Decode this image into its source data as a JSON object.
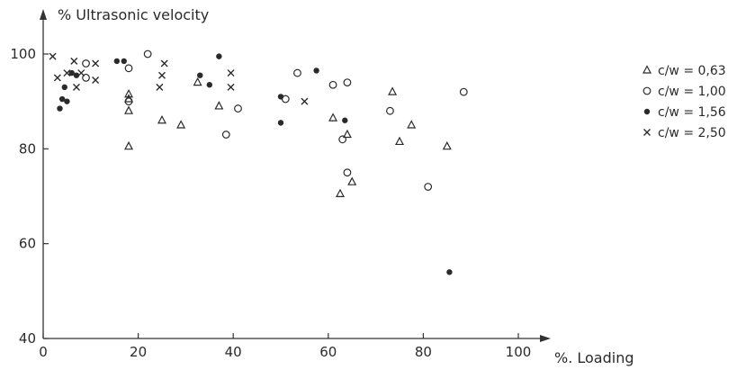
{
  "chart_data": {
    "type": "scatter",
    "title": "",
    "ylabel": "% Ultrasonic velocity",
    "xlabel": "%. Loading",
    "xlim": [
      0,
      100
    ],
    "ylim": [
      40,
      100
    ],
    "xticks": [
      "0",
      "20",
      "40",
      "60",
      "80",
      "100"
    ],
    "yticks": [
      "40",
      "60",
      "80",
      "100"
    ],
    "grid": false,
    "legend": "right",
    "series": [
      {
        "name": "c/w = 0,63",
        "marker": "triangle",
        "x": [
          18,
          18,
          18,
          18,
          25,
          29,
          32.5,
          37,
          61,
          62.5,
          64,
          65,
          73.5,
          75,
          77.5,
          85
        ],
        "y": [
          80.5,
          88,
          91.5,
          90.5,
          86,
          85,
          94,
          89,
          86.5,
          70.5,
          83,
          73,
          92,
          81.5,
          85,
          80.5
        ]
      },
      {
        "name": "c/w = 1,00",
        "marker": "circle",
        "x": [
          9,
          9,
          18,
          18,
          22,
          38.5,
          41,
          51,
          53.5,
          61,
          63,
          64,
          64,
          73,
          81,
          88.5
        ],
        "y": [
          98,
          95,
          97,
          90,
          100,
          83,
          88.5,
          90.5,
          96,
          93.5,
          82,
          94,
          75,
          88,
          72,
          92
        ]
      },
      {
        "name": "c/w = 1,56",
        "marker": "dot",
        "x": [
          3.5,
          4,
          4.5,
          5,
          6,
          7,
          15.5,
          17,
          33,
          35,
          37,
          50,
          50,
          57.5,
          63.5,
          85.5
        ],
        "y": [
          88.5,
          90.5,
          93,
          90,
          96,
          95.5,
          98.5,
          98.5,
          95.5,
          93.5,
          99.5,
          91,
          85.5,
          96.5,
          86,
          54
        ]
      },
      {
        "name": "c/w = 2,50",
        "marker": "cross",
        "x": [
          2,
          3,
          5,
          6.5,
          7,
          8,
          11,
          11,
          24.5,
          25,
          25.5,
          39.5,
          39.5,
          55
        ],
        "y": [
          99.5,
          95,
          96,
          98.5,
          93,
          96,
          98,
          94.5,
          93,
          95.5,
          98,
          96,
          93,
          90
        ]
      }
    ]
  }
}
